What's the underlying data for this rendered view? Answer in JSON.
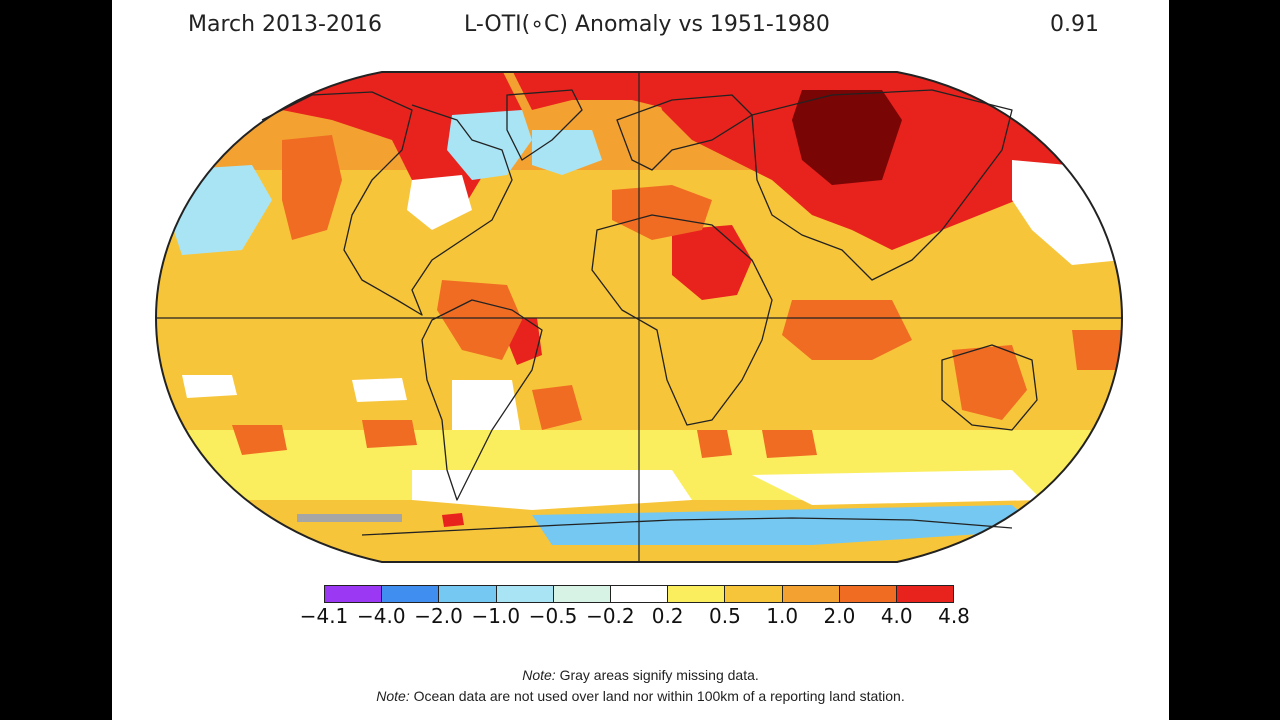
{
  "title": {
    "period": "March 2013-2016",
    "index": "L-OTI(∘C) Anomaly vs 1951-1980",
    "global_mean": "0.91"
  },
  "legend": {
    "labels": [
      "−4.1",
      "−4.0",
      "−2.0",
      "−1.0",
      "−0.5",
      "−0.2",
      "0.2",
      "0.5",
      "1.0",
      "2.0",
      "4.0",
      "4.8"
    ],
    "colors": [
      "#9b38f3",
      "#3f8ef0",
      "#74c8f2",
      "#a9e4f5",
      "#d6f3e6",
      "#ffffff",
      "#fbee5e",
      "#f7c53a",
      "#f3a231",
      "#f06c23",
      "#e8221d",
      "#7a0505"
    ]
  },
  "map_colors": {
    "ocean_warm": "#f7c53a",
    "orange": "#f3a231",
    "deep_orange": "#f06c23",
    "red": "#e8221d",
    "dark_red": "#7a0505",
    "light_blue": "#a9e4f5",
    "blue": "#74c8f2",
    "white": "#ffffff",
    "yellow": "#fbee5e",
    "missing": "#a6a6a6"
  },
  "notes": [
    {
      "label": "Note:",
      "text": " Gray areas signify missing data."
    },
    {
      "label": "Note:",
      "text": " Ocean data are not used over land nor within 100km of a reporting land station."
    }
  ]
}
